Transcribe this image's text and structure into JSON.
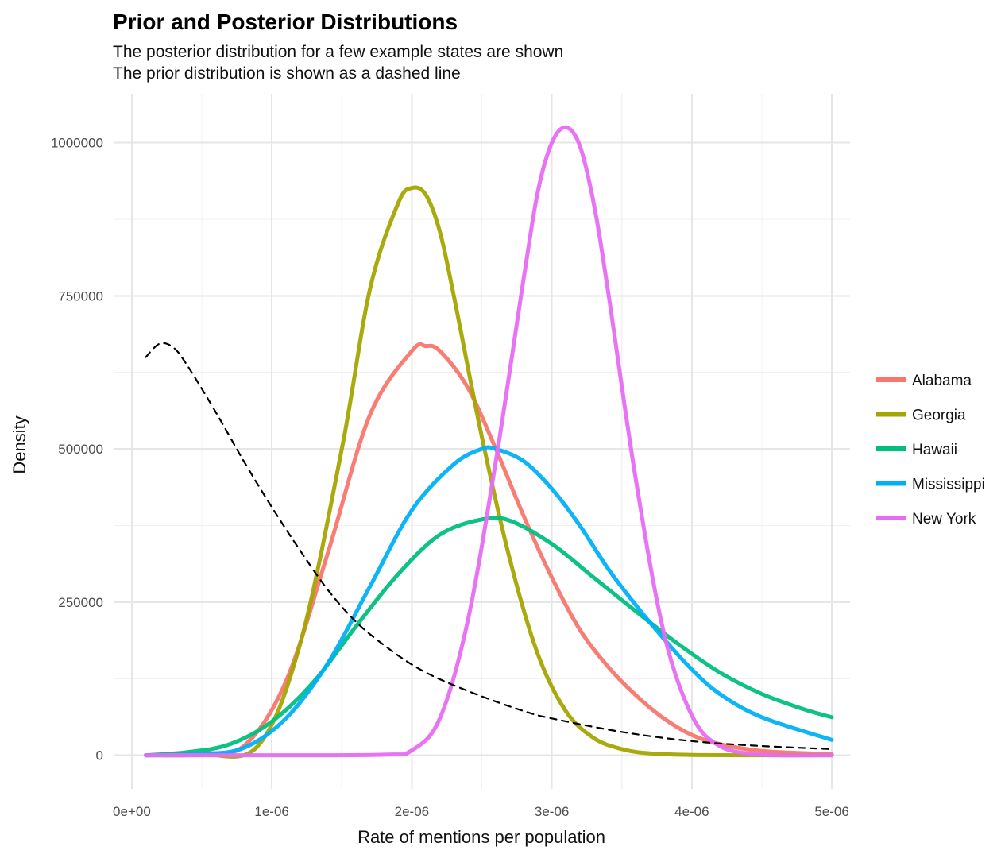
{
  "chart_data": {
    "type": "line",
    "title": "Prior and Posterior Distributions",
    "subtitle_lines": [
      "The posterior distribution for a few example states are shown",
      "The prior distribution is shown as a dashed line"
    ],
    "xlabel": "Rate of mentions per population",
    "ylabel": "Density",
    "xlim": [
      0,
      5e-06
    ],
    "ylim": [
      0,
      1050000
    ],
    "x_ticks": [
      0,
      1e-06,
      2e-06,
      3e-06,
      4e-06,
      5e-06
    ],
    "x_tick_labels": [
      "0e+00",
      "1e-06",
      "2e-06",
      "3e-06",
      "4e-06",
      "5e-06"
    ],
    "y_ticks": [
      0,
      250000,
      500000,
      750000,
      1000000
    ],
    "y_tick_labels": [
      "0",
      "250000",
      "500000",
      "750000",
      "1000000"
    ],
    "grid": true,
    "legend_position": "right",
    "series": [
      {
        "name": "Alabama",
        "color": "#f8766d",
        "dashed": false,
        "x": [
          1e-07,
          5e-07,
          8e-07,
          1.1e-06,
          1.4e-06,
          1.7e-06,
          2e-06,
          2.1e-06,
          2.2e-06,
          2.4e-06,
          2.6e-06,
          2.8e-06,
          3e-06,
          3.2e-06,
          3.4e-06,
          3.6e-06,
          3.8e-06,
          4e-06,
          4.2e-06,
          4.5e-06,
          5e-06
        ],
        "values": [
          0,
          3000,
          15000,
          120000,
          330000,
          555000,
          660000,
          668000,
          660000,
          600000,
          500000,
          390000,
          290000,
          205000,
          145000,
          98000,
          60000,
          33000,
          18000,
          7000,
          1500
        ]
      },
      {
        "name": "Georgia",
        "color": "#a3a500",
        "dashed": false,
        "x": [
          1e-07,
          5e-07,
          9e-07,
          1.2e-06,
          1.5e-06,
          1.7e-06,
          1.9e-06,
          2e-06,
          2.1e-06,
          2.2e-06,
          2.3e-06,
          2.5e-06,
          2.7e-06,
          2.9e-06,
          3.1e-06,
          3.3e-06,
          3.5e-06,
          3.7e-06,
          4e-06,
          4.5e-06,
          5e-06
        ],
        "values": [
          0,
          1000,
          15000,
          180000,
          500000,
          760000,
          900000,
          926000,
          915000,
          855000,
          750000,
          520000,
          320000,
          165000,
          72000,
          28000,
          10000,
          3000,
          500,
          0,
          0
        ]
      },
      {
        "name": "Hawaii",
        "color": "#00bf7d",
        "dashed": false,
        "x": [
          1e-07,
          4e-07,
          7e-07,
          1e-06,
          1.3e-06,
          1.6e-06,
          1.9e-06,
          2.2e-06,
          2.5e-06,
          2.7e-06,
          3e-06,
          3.3e-06,
          3.6e-06,
          3.9e-06,
          4.2e-06,
          4.5e-06,
          4.8e-06,
          5e-06
        ],
        "values": [
          0,
          5000,
          18000,
          55000,
          120000,
          210000,
          295000,
          360000,
          385000,
          383000,
          345000,
          290000,
          235000,
          182000,
          135000,
          100000,
          75000,
          62000
        ]
      },
      {
        "name": "Mississippi",
        "color": "#00b0f6",
        "dashed": false,
        "x": [
          1e-07,
          5e-07,
          8e-07,
          1.1e-06,
          1.4e-06,
          1.7e-06,
          2e-06,
          2.3e-06,
          2.5e-06,
          2.6e-06,
          2.8e-06,
          3e-06,
          3.2e-06,
          3.4e-06,
          3.6e-06,
          3.8e-06,
          4e-06,
          4.2e-06,
          4.5e-06,
          5e-06
        ],
        "values": [
          0,
          2000,
          12000,
          60000,
          150000,
          275000,
          400000,
          475000,
          500000,
          500000,
          480000,
          435000,
          375000,
          305000,
          245000,
          190000,
          140000,
          100000,
          62000,
          25000
        ]
      },
      {
        "name": "New York",
        "color": "#e76bf3",
        "dashed": false,
        "x": [
          1e-07,
          1e-06,
          1.8e-06,
          2e-06,
          2.2e-06,
          2.4e-06,
          2.6e-06,
          2.8e-06,
          2.9e-06,
          3e-06,
          3.1e-06,
          3.2e-06,
          3.3e-06,
          3.4e-06,
          3.6e-06,
          3.8e-06,
          4e-06,
          4.2e-06,
          4.5e-06,
          5e-06
        ],
        "values": [
          0,
          0,
          1000,
          8000,
          60000,
          220000,
          480000,
          780000,
          920000,
          1000000,
          1025000,
          995000,
          900000,
          760000,
          450000,
          200000,
          65000,
          15000,
          1000,
          0
        ]
      },
      {
        "name": "",
        "color": "#000000",
        "dashed": true,
        "x": [
          1e-07,
          2e-07,
          3e-07,
          4e-07,
          6e-07,
          8e-07,
          1e-06,
          1.2e-06,
          1.4e-06,
          1.6e-06,
          1.8e-06,
          2e-06,
          2.2e-06,
          2.5e-06,
          2.8e-06,
          3e-06,
          3.5e-06,
          4e-06,
          4.5e-06,
          5e-06
        ],
        "values": [
          650000,
          672000,
          665000,
          635000,
          560000,
          480000,
          405000,
          335000,
          270000,
          218000,
          180000,
          148000,
          124000,
          96000,
          72000,
          60000,
          38000,
          23000,
          15000,
          10000
        ]
      }
    ]
  }
}
